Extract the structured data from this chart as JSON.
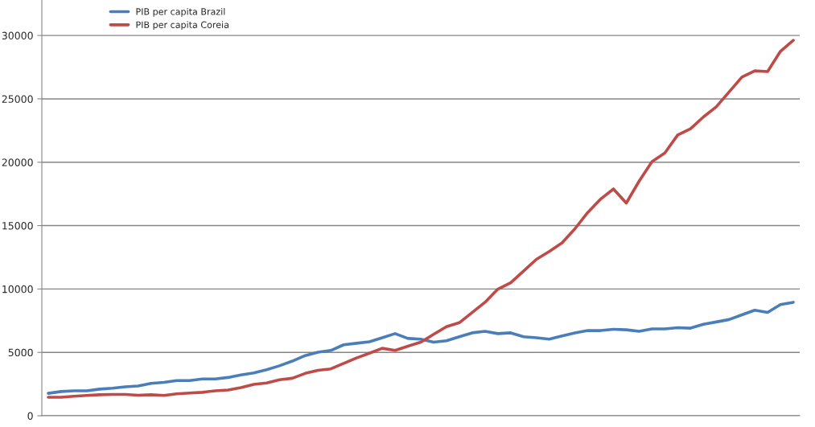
{
  "chart_data": {
    "type": "line",
    "categories": [
      null,
      null,
      null,
      null,
      null,
      null,
      null,
      null,
      null,
      null,
      null,
      null,
      null,
      null,
      null,
      null,
      null,
      null,
      null,
      null,
      null,
      null,
      null,
      null,
      null,
      null,
      null,
      null,
      null,
      null,
      null,
      null,
      null,
      null,
      null,
      null,
      null,
      null,
      null,
      null,
      null,
      null,
      null,
      null,
      null,
      null,
      null,
      null,
      null,
      null,
      null,
      null,
      null,
      null,
      null,
      null,
      null,
      null,
      null
    ],
    "series": [
      {
        "name": "PIB per capita Brazil",
        "color": "#4a7ebb",
        "values": [
          1770,
          1910,
          1970,
          1970,
          2100,
          2170,
          2280,
          2350,
          2550,
          2630,
          2780,
          2780,
          2900,
          2900,
          3020,
          3220,
          3380,
          3630,
          3940,
          4310,
          4750,
          5010,
          5150,
          5600,
          5720,
          5840,
          6160,
          6480,
          6100,
          6040,
          5800,
          5920,
          6230,
          6540,
          6660,
          6480,
          6540,
          6230,
          6150,
          6040,
          6290,
          6540,
          6720,
          6720,
          6820,
          6780,
          6660,
          6850,
          6850,
          6950,
          6910,
          7220,
          7400,
          7590,
          7960,
          8330,
          8150,
          8770,
          8950
        ]
      },
      {
        "name": "PIB per capita Coreia",
        "color": "#be4b48",
        "values": [
          1460,
          1460,
          1540,
          1600,
          1660,
          1680,
          1680,
          1620,
          1660,
          1600,
          1730,
          1790,
          1850,
          1970,
          2030,
          2220,
          2470,
          2590,
          2840,
          2960,
          3340,
          3580,
          3700,
          4130,
          4560,
          4930,
          5320,
          5150,
          5490,
          5800,
          6420,
          7030,
          7340,
          8150,
          8950,
          9990,
          10490,
          11410,
          12340,
          12960,
          13640,
          14750,
          16040,
          17090,
          17890,
          16780,
          18510,
          20050,
          20730,
          22150,
          22640,
          23570,
          24370,
          25540,
          26720,
          27210,
          27150,
          28750,
          29620
        ]
      }
    ],
    "ylim": [
      0,
      32800
    ],
    "yticks": [
      0,
      5000,
      10000,
      15000,
      20000,
      25000,
      30000
    ],
    "grid": "y",
    "legend": "top left",
    "tick_labels": "y",
    "marker": "none",
    "line_style": "solid"
  }
}
